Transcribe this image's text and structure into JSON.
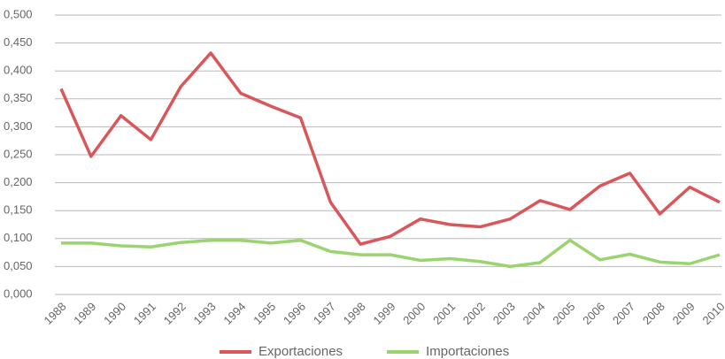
{
  "chart_data": {
    "type": "line",
    "categories": [
      1988,
      1989,
      1990,
      1991,
      1992,
      1993,
      1994,
      1995,
      1996,
      1997,
      1998,
      1999,
      2000,
      2001,
      2002,
      2003,
      2004,
      2005,
      2006,
      2007,
      2008,
      2009,
      2010
    ],
    "series": [
      {
        "name": "Exportaciones",
        "color": "#d9575a",
        "values": [
          0.368,
          0.247,
          0.32,
          0.277,
          0.372,
          0.432,
          0.36,
          0.337,
          0.316,
          0.165,
          0.09,
          0.104,
          0.135,
          0.125,
          0.121,
          0.135,
          0.168,
          0.152,
          0.194,
          0.217,
          0.144,
          0.192,
          0.165
        ]
      },
      {
        "name": "Importaciones",
        "color": "#9ad46e",
        "values": [
          0.092,
          0.092,
          0.087,
          0.085,
          0.093,
          0.097,
          0.097,
          0.092,
          0.097,
          0.077,
          0.071,
          0.071,
          0.061,
          0.064,
          0.059,
          0.05,
          0.057,
          0.097,
          0.062,
          0.072,
          0.058,
          0.055,
          0.071
        ]
      }
    ],
    "ylim": [
      0,
      0.5
    ],
    "yticks": [
      {
        "value": 0,
        "label": "0,000"
      },
      {
        "value": 0.05,
        "label": "0,050"
      },
      {
        "value": 0.1,
        "label": "0,100"
      },
      {
        "value": 0.15,
        "label": "0,150"
      },
      {
        "value": 0.2,
        "label": "0,200"
      },
      {
        "value": 0.25,
        "label": "0,250"
      },
      {
        "value": 0.3,
        "label": "0,300"
      },
      {
        "value": 0.35,
        "label": "0,350"
      },
      {
        "value": 0.4,
        "label": "0,400"
      },
      {
        "value": 0.45,
        "label": "0,450"
      },
      {
        "value": 0.5,
        "label": "0,500"
      }
    ],
    "grid": true,
    "legend": "bottom"
  }
}
